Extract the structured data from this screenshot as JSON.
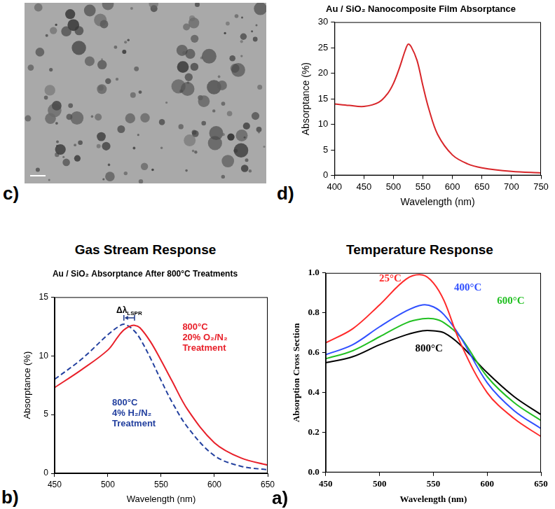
{
  "image": {
    "panel": "c)"
  },
  "chart_data": [
    {
      "panel": "d)",
      "type": "line",
      "title": "Au / SiO₂ Nanocomposite Film Absorptance",
      "x_label": "Wavelength (nm)",
      "y_label": "Absorptance (%)",
      "x": [
        400,
        425,
        450,
        475,
        490,
        500,
        510,
        520,
        525,
        530,
        540,
        550,
        560,
        575,
        600,
        625,
        650,
        700,
        750
      ],
      "series": [
        {
          "color": "#d8262a",
          "line_style": "solid",
          "values": [
            14,
            13.7,
            13.5,
            14.3,
            16,
            18,
            21,
            24.5,
            25.7,
            25.2,
            22.5,
            17.5,
            13,
            8,
            4,
            2.3,
            1.5,
            0.8,
            0.5
          ]
        }
      ],
      "xlim": [
        400,
        750
      ],
      "xticks": [
        400,
        450,
        500,
        550,
        600,
        650,
        700,
        750
      ],
      "ylim": [
        0,
        30
      ],
      "yticks": [
        0,
        5,
        10,
        15,
        20,
        25,
        30
      ],
      "grid": false
    },
    {
      "panel": "b)",
      "heading": "Gas Stream Response",
      "type": "line",
      "title": "Au / SiO₂ Absorptance After 800°C Treatments",
      "x_label": "Wavelength (nm)",
      "y_label": "Absorptance (%)",
      "x": [
        450,
        475,
        500,
        510,
        515,
        520,
        525,
        530,
        540,
        550,
        560,
        575,
        600,
        625,
        650
      ],
      "series": [
        {
          "name": "800°C 20% O₂/N₂ Treatment",
          "color": "#e8202a",
          "line_style": "solid",
          "values": [
            7.3,
            8.8,
            10.5,
            11.7,
            12.2,
            12.5,
            12.6,
            12.4,
            11.2,
            9.6,
            7.9,
            5.4,
            2.6,
            1.3,
            0.7
          ]
        },
        {
          "name": "800°C 4% H₂/N₂ Treatment",
          "color": "#23409f",
          "line_style": "dashed",
          "values": [
            8.0,
            9.7,
            11.8,
            12.5,
            12.7,
            12.5,
            12.1,
            11.5,
            9.8,
            7.9,
            6.1,
            3.9,
            1.5,
            0.6,
            0.3
          ]
        }
      ],
      "annotations": [
        {
          "text": "Δλ",
          "subscript": "LSPR"
        }
      ],
      "xlim": [
        450,
        650
      ],
      "xticks": [
        450,
        500,
        550,
        600,
        650
      ],
      "ylim": [
        0,
        15
      ],
      "yticks": [
        0,
        5,
        10,
        15
      ],
      "grid": false
    },
    {
      "panel": "a)",
      "heading": "Temperature Response",
      "type": "line",
      "x_label": "Wavelength (nm)",
      "y_label": "Absorption Cross Section",
      "x": [
        450,
        475,
        500,
        525,
        540,
        550,
        560,
        575,
        600,
        625,
        650
      ],
      "series": [
        {
          "name": "25°C",
          "color": "#ff2a2a",
          "line_style": "solid",
          "values": [
            0.65,
            0.72,
            0.84,
            0.97,
            0.99,
            0.95,
            0.86,
            0.65,
            0.4,
            0.27,
            0.18
          ]
        },
        {
          "name": "400°C",
          "color": "#3050ff",
          "line_style": "solid",
          "values": [
            0.59,
            0.64,
            0.73,
            0.81,
            0.84,
            0.83,
            0.79,
            0.68,
            0.45,
            0.31,
            0.22
          ]
        },
        {
          "name": "600°C",
          "color": "#22c022",
          "line_style": "solid",
          "values": [
            0.57,
            0.61,
            0.68,
            0.75,
            0.77,
            0.77,
            0.75,
            0.68,
            0.48,
            0.35,
            0.26
          ]
        },
        {
          "name": "800°C",
          "color": "#000000",
          "line_style": "solid",
          "values": [
            0.55,
            0.58,
            0.64,
            0.69,
            0.71,
            0.71,
            0.7,
            0.64,
            0.5,
            0.38,
            0.29
          ]
        }
      ],
      "xlim": [
        450,
        650
      ],
      "xticks": [
        450,
        500,
        550,
        600,
        650
      ],
      "ylim": [
        0,
        1
      ],
      "yticks": [
        {
          "value": 0,
          "label": "0.0"
        },
        0.2,
        0.4,
        0.6,
        0.8,
        {
          "value": 1,
          "label": "1.0"
        }
      ],
      "grid": false
    }
  ]
}
